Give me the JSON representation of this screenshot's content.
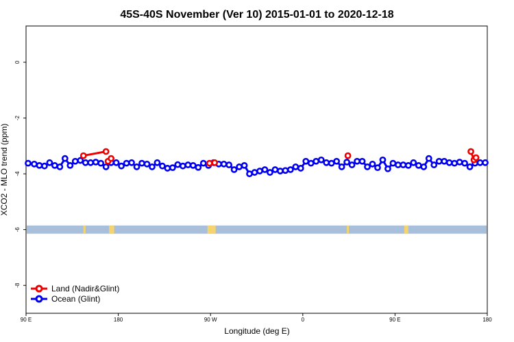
{
  "chart_data": {
    "type": "line",
    "title": "45S-40S November (Ver 10)   2015-01-01 to 2020-12-18",
    "xlabel": "Longitude (deg E)",
    "ylabel": "XCO2 - MLO trend (ppm)",
    "x_ticks": [
      {
        "value": 90,
        "label": "90 E"
      },
      {
        "value": 180,
        "label": "180"
      },
      {
        "value": 270,
        "label": "90 W"
      },
      {
        "value": 360,
        "label": "0"
      },
      {
        "value": 450,
        "label": "90 E"
      },
      {
        "value": 540,
        "label": "180"
      }
    ],
    "y_ticks": [
      {
        "value": 0,
        "label": "0"
      },
      {
        "value": -2,
        "label": "-2"
      },
      {
        "value": -4,
        "label": "-4"
      },
      {
        "value": -6,
        "label": "-6"
      },
      {
        "value": -8,
        "label": "-8"
      }
    ],
    "xlim": [
      90,
      540
    ],
    "ylim": [
      -9,
      1.3
    ],
    "grid": false,
    "legend_position": "bottom-left",
    "land_sea_strip": {
      "y_value": -6,
      "ocean_color": "#a8bfdc",
      "land_color": "#f5d470",
      "land_spans": [
        [
          146,
          148
        ],
        [
          171,
          176
        ],
        [
          267,
          275
        ],
        [
          403,
          405
        ],
        [
          459,
          463
        ]
      ]
    },
    "series": [
      {
        "name": "Land (Nadir&Glint)",
        "color": "#ee0000",
        "segments": [
          {
            "x": [
              146,
              168
            ],
            "y": [
              -3.35,
              -3.2
            ]
          },
          {
            "x": [
              170,
              173
            ],
            "y": [
              -3.55,
              -3.45
            ]
          },
          {
            "x": [
              269,
              274
            ],
            "y": [
              -3.62,
              -3.6
            ]
          },
          {
            "x": [
              404
            ],
            "y": [
              -3.35
            ]
          },
          {
            "x": [
              524,
              527,
              529
            ],
            "y": [
              -3.2,
              -3.5,
              -3.42
            ]
          }
        ]
      },
      {
        "name": "Ocean (Glint)",
        "color": "#0000ee",
        "x": [
          92,
          98,
          103,
          108,
          113,
          118,
          123,
          128,
          133,
          138,
          143,
          148,
          153,
          158,
          163,
          168,
          173,
          178,
          183,
          188,
          193,
          198,
          203,
          208,
          213,
          218,
          223,
          228,
          233,
          238,
          243,
          248,
          253,
          258,
          263,
          268,
          273,
          278,
          283,
          288,
          293,
          298,
          303,
          308,
          313,
          318,
          323,
          328,
          333,
          338,
          343,
          348,
          353,
          358,
          363,
          368,
          373,
          378,
          383,
          388,
          393,
          398,
          403,
          408,
          413,
          418,
          423,
          428,
          433,
          438,
          443,
          448,
          453,
          458,
          463,
          468,
          473,
          478,
          483,
          488,
          493,
          498,
          503,
          508,
          513,
          518,
          523,
          528,
          533,
          538
        ],
        "y": [
          -3.62,
          -3.65,
          -3.7,
          -3.72,
          -3.6,
          -3.7,
          -3.75,
          -3.45,
          -3.7,
          -3.55,
          -3.52,
          -3.6,
          -3.6,
          -3.58,
          -3.62,
          -3.75,
          -3.6,
          -3.6,
          -3.72,
          -3.62,
          -3.6,
          -3.75,
          -3.62,
          -3.65,
          -3.75,
          -3.6,
          -3.72,
          -3.8,
          -3.78,
          -3.67,
          -3.72,
          -3.68,
          -3.7,
          -3.77,
          -3.62,
          -3.7,
          -3.6,
          -3.65,
          -3.65,
          -3.68,
          -3.85,
          -3.75,
          -3.7,
          -4.0,
          -3.95,
          -3.9,
          -3.85,
          -3.95,
          -3.85,
          -3.9,
          -3.88,
          -3.85,
          -3.75,
          -3.8,
          -3.55,
          -3.62,
          -3.55,
          -3.5,
          -3.6,
          -3.62,
          -3.55,
          -3.75,
          -3.58,
          -3.68,
          -3.55,
          -3.55,
          -3.75,
          -3.65,
          -3.78,
          -3.5,
          -3.82,
          -3.62,
          -3.68,
          -3.68,
          -3.7,
          -3.6,
          -3.7,
          -3.75,
          -3.45,
          -3.68,
          -3.55,
          -3.55,
          -3.6,
          -3.62,
          -3.58,
          -3.62,
          -3.75,
          -3.62,
          -3.6,
          -3.6
        ]
      }
    ]
  }
}
